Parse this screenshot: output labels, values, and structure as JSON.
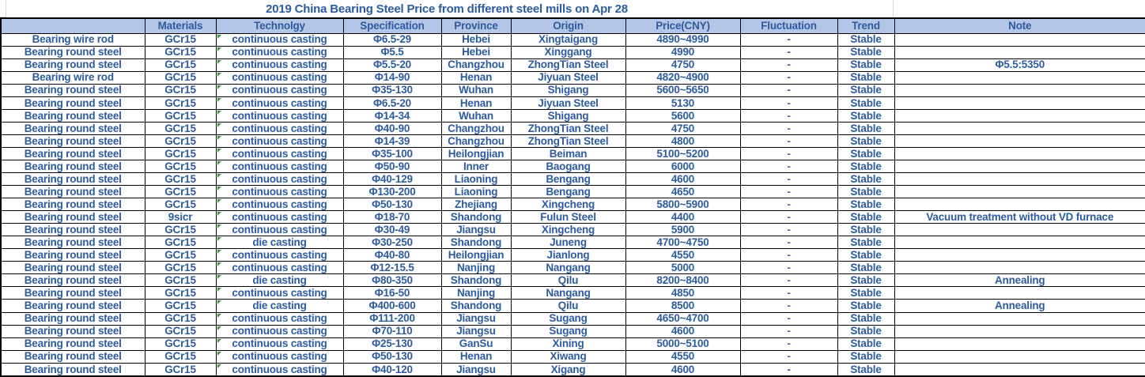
{
  "title": "2019 China Bearing Steel Price from different steel mills on Apr 28",
  "colors": {
    "header_fill": "#b4c6e7",
    "text_blue": "#2d5b9e",
    "border": "#000000",
    "gridline": "#d3d9e4",
    "flag_green": "#3a9b35"
  },
  "table": {
    "columns": [
      "",
      "Materials",
      "Technolgy",
      "Specification",
      "Province",
      "Origin",
      "Price(CNY)",
      "Fluctuation",
      "Trend",
      "Note"
    ],
    "row_keys": [
      "name",
      "materials",
      "technology",
      "specification",
      "province",
      "origin",
      "price",
      "fluctuation",
      "trend",
      "note"
    ],
    "rows": [
      {
        "name": "Bearing wire rod",
        "materials": "GCr15",
        "technology": "continuous casting",
        "specification": "Φ6.5-29",
        "province": "Hebei",
        "origin": "Xingtaigang",
        "price": "4890~4990",
        "fluctuation": "-",
        "trend": "Stable",
        "note": ""
      },
      {
        "name": "Bearing round steel",
        "materials": "GCr15",
        "technology": "continuous casting",
        "specification": "Φ5.5",
        "province": "Hebei",
        "origin": "Xinggang",
        "price": "4990",
        "fluctuation": "-",
        "trend": "Stable",
        "note": ""
      },
      {
        "name": "Bearing round steel",
        "materials": "GCr15",
        "technology": "continuous casting",
        "specification": "Φ5.5-20",
        "province": "Changzhou",
        "origin": "ZhongTian Steel",
        "price": "4750",
        "fluctuation": "-",
        "trend": "Stable",
        "note": "Φ5.5:5350"
      },
      {
        "name": "Bearing wire rod",
        "materials": "GCr15",
        "technology": "continuous casting",
        "specification": "Φ14-90",
        "province": "Henan",
        "origin": "Jiyuan Steel",
        "price": "4820~4900",
        "fluctuation": "-",
        "trend": "Stable",
        "note": ""
      },
      {
        "name": "Bearing round steel",
        "materials": "GCr15",
        "technology": "continuous casting",
        "specification": "Φ35-130",
        "province": "Wuhan",
        "origin": "Shigang",
        "price": "5600~5650",
        "fluctuation": "-",
        "trend": "Stable",
        "note": ""
      },
      {
        "name": "Bearing round steel",
        "materials": "GCr15",
        "technology": "continuous casting",
        "specification": "Φ6.5-20",
        "province": "Henan",
        "origin": "Jiyuan Steel",
        "price": "5130",
        "fluctuation": "-",
        "trend": "Stable",
        "note": ""
      },
      {
        "name": "Bearing round steel",
        "materials": "GCr15",
        "technology": "continuous casting",
        "specification": "Φ14-34",
        "province": "Wuhan",
        "origin": "Shigang",
        "price": "5600",
        "fluctuation": "-",
        "trend": "Stable",
        "note": ""
      },
      {
        "name": "Bearing round steel",
        "materials": "GCr15",
        "technology": "continuous casting",
        "specification": "Φ40-90",
        "province": "Changzhou",
        "origin": "ZhongTian Steel",
        "price": "4750",
        "fluctuation": "-",
        "trend": "Stable",
        "note": ""
      },
      {
        "name": "Bearing round steel",
        "materials": "GCr15",
        "technology": "continuous casting",
        "specification": "Φ14-39",
        "province": "Changzhou",
        "origin": "ZhongTian Steel",
        "price": "4800",
        "fluctuation": "-",
        "trend": "Stable",
        "note": ""
      },
      {
        "name": "Bearing round steel",
        "materials": "GCr15",
        "technology": "continuous casting",
        "specification": "Φ35-100",
        "province": "Heilongjian",
        "origin": "Beiman",
        "price": "5100~5200",
        "fluctuation": "-",
        "trend": "Stable",
        "note": ""
      },
      {
        "name": "Bearing round steel",
        "materials": "GCr15",
        "technology": "continuous casting",
        "specification": "Φ50-90",
        "province": "Inner",
        "origin": "Baogang",
        "price": "6000",
        "fluctuation": "-",
        "trend": "Stable",
        "note": ""
      },
      {
        "name": "Bearing round steel",
        "materials": "GCr15",
        "technology": "continuous casting",
        "specification": "Φ40-129",
        "province": "Liaoning",
        "origin": "Bengang",
        "price": "4600",
        "fluctuation": "-",
        "trend": "Stable",
        "note": ""
      },
      {
        "name": "Bearing round steel",
        "materials": "GCr15",
        "technology": "continuous casting",
        "specification": "Φ130-200",
        "province": "Liaoning",
        "origin": "Bengang",
        "price": "4650",
        "fluctuation": "-",
        "trend": "Stable",
        "note": ""
      },
      {
        "name": "Bearing round steel",
        "materials": "GCr15",
        "technology": "continuous casting",
        "specification": "Φ50-130",
        "province": "Zhejiang",
        "origin": "Xingcheng",
        "price": "5800~5900",
        "fluctuation": "-",
        "trend": "Stable",
        "note": ""
      },
      {
        "name": "Bearing round steel",
        "materials": "9sicr",
        "technology": "continuous casting",
        "specification": "Φ18-70",
        "province": "Shandong",
        "origin": "Fulun Steel",
        "price": "4400",
        "fluctuation": "-",
        "trend": "Stable",
        "note": "Vacuum treatment without VD furnace"
      },
      {
        "name": "Bearing round steel",
        "materials": "GCr15",
        "technology": "continuous casting",
        "specification": "Φ30-49",
        "province": "Jiangsu",
        "origin": "Xingcheng",
        "price": "5900",
        "fluctuation": "-",
        "trend": "Stable",
        "note": ""
      },
      {
        "name": "Bearing round steel",
        "materials": "GCr15",
        "technology": "die casting",
        "specification": "Φ30-250",
        "province": "Shandong",
        "origin": "Juneng",
        "price": "4700~4750",
        "fluctuation": "-",
        "trend": "Stable",
        "note": ""
      },
      {
        "name": "Bearing round steel",
        "materials": "GCr15",
        "technology": "continuous casting",
        "specification": "Φ40-80",
        "province": "Heilongjian",
        "origin": "Jianlong",
        "price": "4550",
        "fluctuation": "-",
        "trend": "Stable",
        "note": ""
      },
      {
        "name": "Bearing round steel",
        "materials": "GCr15",
        "technology": "continuous casting",
        "specification": "Φ12-15.5",
        "province": "Nanjing",
        "origin": "Nangang",
        "price": "5000",
        "fluctuation": "-",
        "trend": "Stable",
        "note": ""
      },
      {
        "name": "Bearing round steel",
        "materials": "GCr15",
        "technology": "die casting",
        "specification": "Φ80-350",
        "province": "Shandong",
        "origin": "Qilu",
        "price": "8200~8400",
        "fluctuation": "-",
        "trend": "Stable",
        "note": "Annealing"
      },
      {
        "name": "Bearing round steel",
        "materials": "GCr15",
        "technology": "continuous casting",
        "specification": "Φ16-50",
        "province": "Nanjing",
        "origin": "Nangang",
        "price": "4850",
        "fluctuation": "-",
        "trend": "Stable",
        "note": ""
      },
      {
        "name": "Bearing round steel",
        "materials": "GCr15",
        "technology": "die casting",
        "specification": "Φ400-600",
        "province": "Shandong",
        "origin": "Qilu",
        "price": "8500",
        "fluctuation": "-",
        "trend": "Stable",
        "note": "Annealing"
      },
      {
        "name": "Bearing round steel",
        "materials": "GCr15",
        "technology": "continuous casting",
        "specification": "Φ111-200",
        "province": "Jiangsu",
        "origin": "Sugang",
        "price": "4650~4700",
        "fluctuation": "-",
        "trend": "Stable",
        "note": ""
      },
      {
        "name": "Bearing round steel",
        "materials": "GCr15",
        "technology": "continuous casting",
        "specification": "Φ70-110",
        "province": "Jiangsu",
        "origin": "Sugang",
        "price": "4600",
        "fluctuation": "-",
        "trend": "Stable",
        "note": ""
      },
      {
        "name": "Bearing round steel",
        "materials": "GCr15",
        "technology": "continuous casting",
        "specification": "Φ25-130",
        "province": "GanSu",
        "origin": "Xining",
        "price": "5000~5100",
        "fluctuation": "-",
        "trend": "Stable",
        "note": ""
      },
      {
        "name": "Bearing round steel",
        "materials": "GCr15",
        "technology": "continuous casting",
        "specification": "Φ50-130",
        "province": "Henan",
        "origin": "Xiwang",
        "price": "4550",
        "fluctuation": "-",
        "trend": "Stable",
        "note": ""
      },
      {
        "name": "Bearing round steel",
        "materials": "GCr15",
        "technology": "continuous casting",
        "specification": "Φ40-120",
        "province": "Jiangsu",
        "origin": "Xigang",
        "price": "4600",
        "fluctuation": "-",
        "trend": "Stable",
        "note": ""
      }
    ]
  }
}
